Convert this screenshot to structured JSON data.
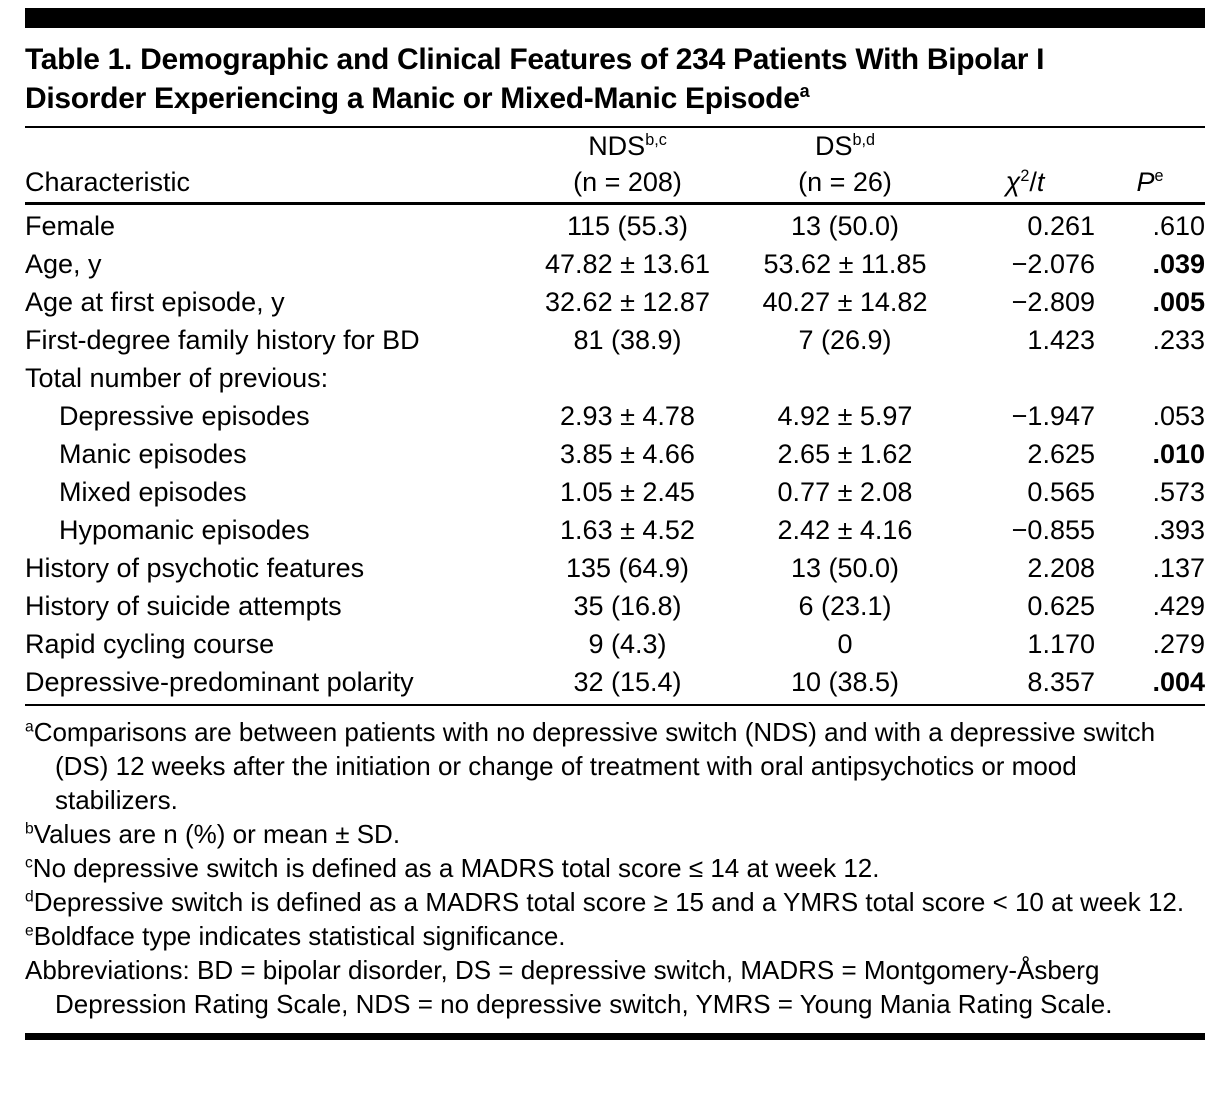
{
  "table": {
    "title_line1": "Table 1. Demographic and Clinical Features of 234 Patients With Bipolar I",
    "title_line2": "Disorder Experiencing a Manic or Mixed-Manic Episode",
    "title_sup": "a",
    "columns": {
      "characteristic": "Characteristic",
      "nds": {
        "name": "NDS",
        "sup": "b,c",
        "n": "(n = 208)"
      },
      "ds": {
        "name": "DS",
        "sup": "b,d",
        "n": "(n = 26)"
      },
      "chi": {
        "symbol": "χ",
        "sup": "2",
        "slash": "/",
        "t": "t"
      },
      "p": {
        "name": "P",
        "sup": "e"
      }
    },
    "rows": [
      {
        "label": "Female",
        "nds": "115 (55.3)",
        "ds": "13 (50.0)",
        "chi": "0.261",
        "p": ".610",
        "bold_p": false
      },
      {
        "label": "Age, y",
        "nds": "47.82 ± 13.61",
        "ds": "53.62 ± 11.85",
        "chi": "−2.076",
        "p": ".039",
        "bold_p": true
      },
      {
        "label": "Age at first episode, y",
        "nds": "32.62 ± 12.87",
        "ds": "40.27 ± 14.82",
        "chi": "−2.809",
        "p": ".005",
        "bold_p": true
      },
      {
        "label": "First-degree family history for BD",
        "nds": "81 (38.9)",
        "ds": "7 (26.9)",
        "chi": "1.423",
        "p": ".233",
        "bold_p": false
      },
      {
        "label": "Total number of previous:",
        "nds": "",
        "ds": "",
        "chi": "",
        "p": "",
        "bold_p": false
      },
      {
        "label": "Depressive episodes",
        "nds": "2.93 ± 4.78",
        "ds": "4.92 ± 5.97",
        "chi": "−1.947",
        "p": ".053",
        "bold_p": false
      },
      {
        "label": "Manic episodes",
        "nds": "3.85 ± 4.66",
        "ds": "2.65 ± 1.62",
        "chi": "2.625",
        "p": ".010",
        "bold_p": true
      },
      {
        "label": "Mixed episodes",
        "nds": "1.05 ± 2.45",
        "ds": "0.77 ± 2.08",
        "chi": "0.565",
        "p": ".573",
        "bold_p": false
      },
      {
        "label": "Hypomanic episodes",
        "nds": "1.63 ± 4.52",
        "ds": "2.42 ± 4.16",
        "chi": "−0.855",
        "p": ".393",
        "bold_p": false
      },
      {
        "label": "History of psychotic features",
        "nds": "135 (64.9)",
        "ds": "13 (50.0)",
        "chi": "2.208",
        "p": ".137",
        "bold_p": false
      },
      {
        "label": "History of suicide attempts",
        "nds": "35 (16.8)",
        "ds": "6 (23.1)",
        "chi": "0.625",
        "p": ".429",
        "bold_p": false
      },
      {
        "label": "Rapid cycling course",
        "nds": "9 (4.3)",
        "ds": "0",
        "chi": "1.170",
        "p": ".279",
        "bold_p": false
      },
      {
        "label": "Depressive-predominant polarity",
        "nds": "32 (15.4)",
        "ds": "10 (38.5)",
        "chi": "8.357",
        "p": ".004",
        "bold_p": true
      }
    ]
  },
  "footnotes": [
    {
      "sup": "a",
      "text": "Comparisons are between patients with no depressive switch (NDS) and with a depressive switch (DS) 12 weeks after the initiation or change of treatment with oral antipsychotics or mood stabilizers."
    },
    {
      "sup": "b",
      "text": "Values are n (%) or mean ± SD."
    },
    {
      "sup": "c",
      "text": "No depressive switch is defined as a MADRS total score ≤ 14 at week 12."
    },
    {
      "sup": "d",
      "text": "Depressive switch is defined as a MADRS total score ≥ 15 and a YMRS total score < 10 at week 12."
    },
    {
      "sup": "e",
      "text": "Boldface type indicates statistical significance."
    },
    {
      "sup": "",
      "text": "Abbreviations: BD = bipolar disorder, DS = depressive switch, MADRS = Montgomery-Åsberg Depression Rating Scale, NDS = no depressive switch, YMRS = Young Mania Rating Scale."
    }
  ]
}
